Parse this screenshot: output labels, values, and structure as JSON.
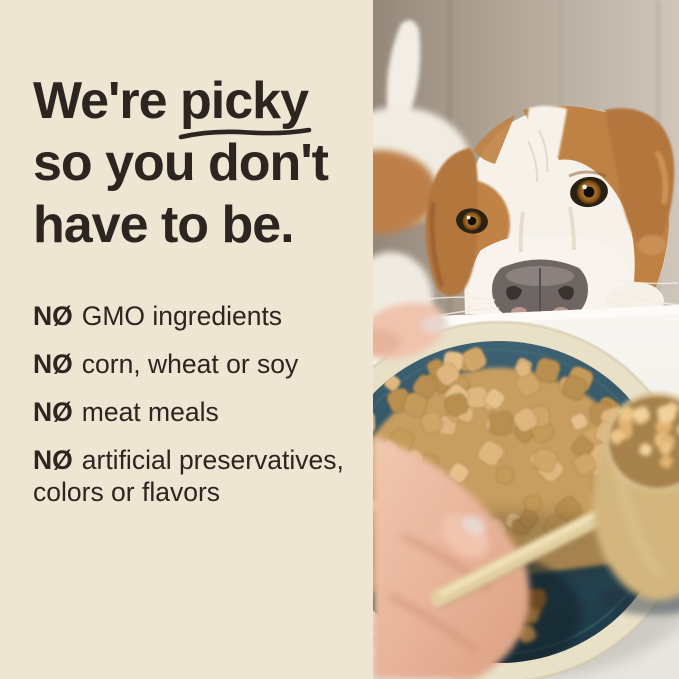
{
  "panel": {
    "headline": {
      "line1_pre": "We're ",
      "line1_highlight": "picky",
      "line2": "so you don't",
      "line3": "have to be."
    },
    "bullets": [
      {
        "prefix": "NØ",
        "text": "GMO ingredients"
      },
      {
        "prefix": "NØ",
        "text": "corn, wheat or soy"
      },
      {
        "prefix": "NØ",
        "text": "meat meals"
      },
      {
        "prefix": "NØ",
        "text": "artificial preservatives,\ncolors or flavors"
      }
    ]
  },
  "colors": {
    "background_cream": "#EFE5D3",
    "text_dark": "#2C2520",
    "wall_taupe": "#B2A697",
    "dog_brown": "#C08244",
    "dog_white": "#F6F2EA",
    "table_white": "#F3F1EB",
    "bowl_teal": "#2B4C5A",
    "bowl_rim_cream": "#E9E0C8",
    "kibble_tan": "#D8B279",
    "scoop_gold": "#D3B57E",
    "hand_skin": "#EFC3AC"
  }
}
